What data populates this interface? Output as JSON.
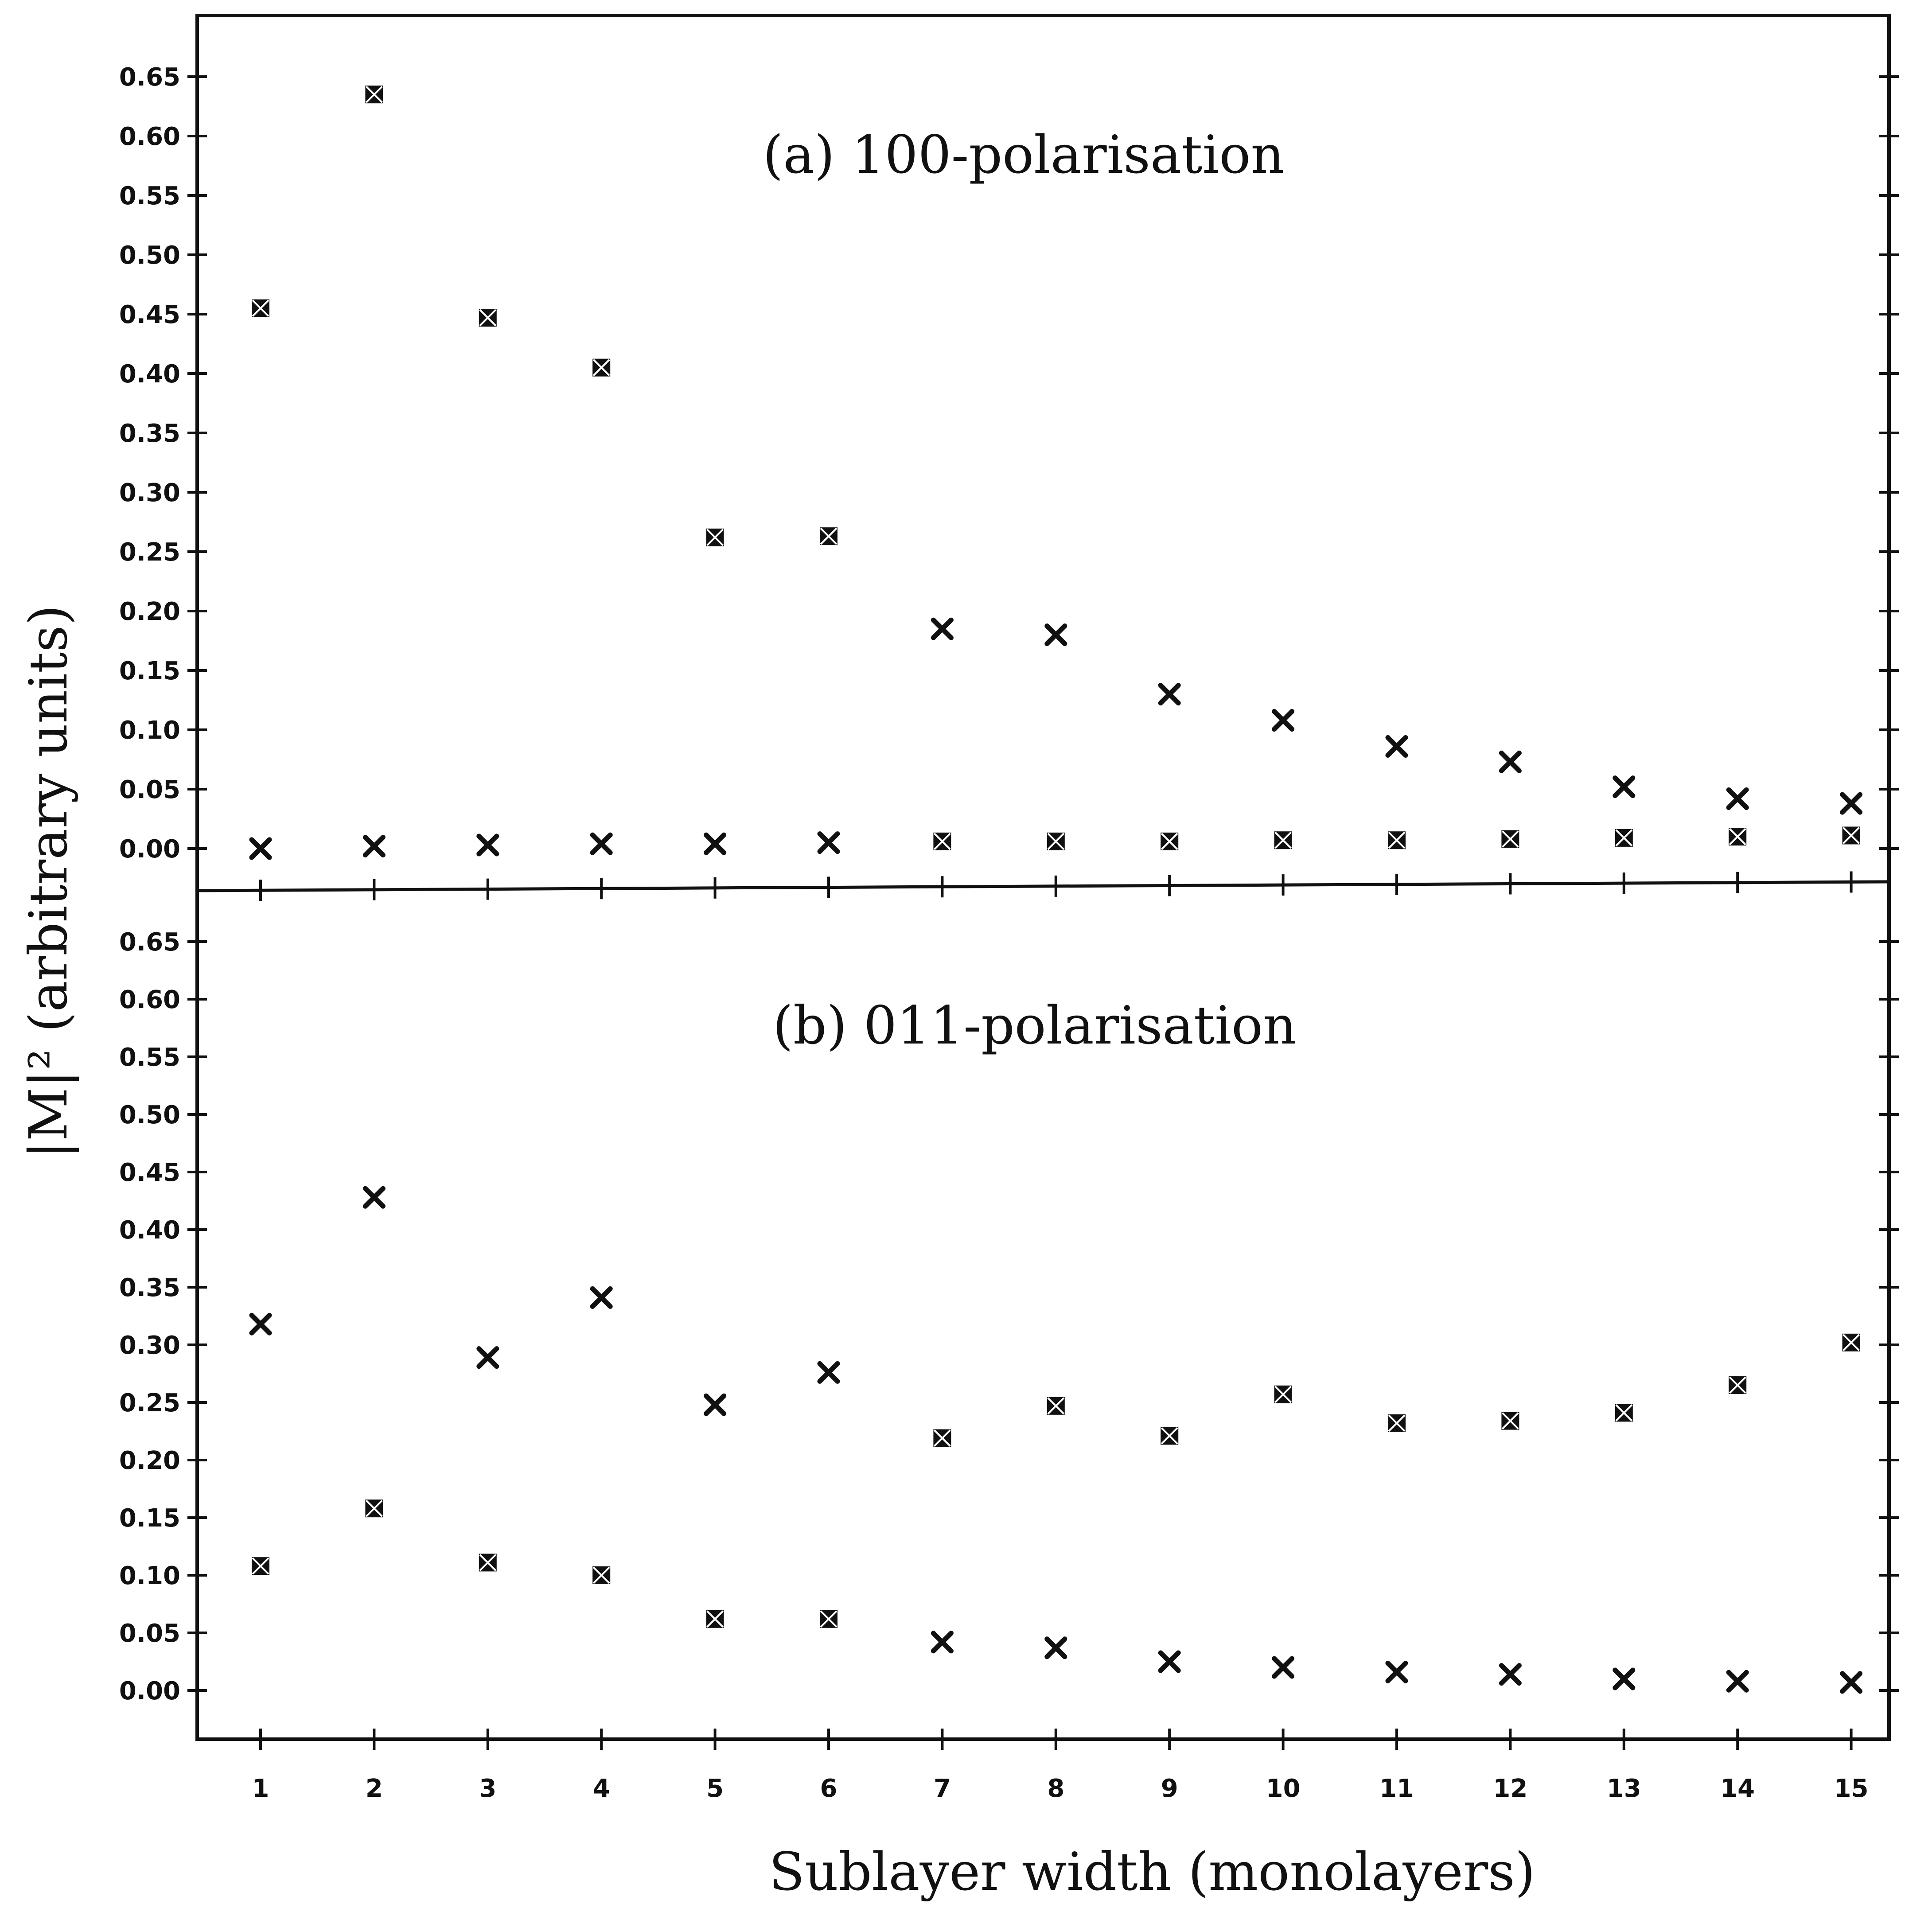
{
  "chart_data": [
    {
      "type": "scatter",
      "title": "(a) 100-polarisation",
      "x": [
        1,
        2,
        3,
        4,
        5,
        6,
        7,
        8,
        9,
        10,
        11,
        12,
        13,
        14,
        15
      ],
      "ylim": [
        -0.03,
        0.68
      ],
      "yticks": [
        "0.00",
        "0.05",
        "0.10",
        "0.15",
        "0.20",
        "0.25",
        "0.30",
        "0.35",
        "0.40",
        "0.45",
        "0.50",
        "0.55",
        "0.60",
        "0.65"
      ],
      "series": [
        {
          "marker": "asterisk",
          "points": [
            [
              1,
              0.455
            ],
            [
              2,
              0.635
            ],
            [
              3,
              0.447
            ],
            [
              4,
              0.405
            ],
            [
              5,
              0.262
            ],
            [
              6,
              0.263
            ],
            [
              7,
              0.006
            ],
            [
              8,
              0.006
            ],
            [
              9,
              0.006
            ],
            [
              10,
              0.007
            ],
            [
              11,
              0.007
            ],
            [
              12,
              0.008
            ],
            [
              13,
              0.009
            ],
            [
              14,
              0.01
            ],
            [
              15,
              0.011
            ]
          ]
        },
        {
          "marker": "cross",
          "points": [
            [
              1,
              0.0
            ],
            [
              2,
              0.002
            ],
            [
              3,
              0.003
            ],
            [
              4,
              0.004
            ],
            [
              5,
              0.004
            ],
            [
              6,
              0.005
            ],
            [
              7,
              0.185
            ],
            [
              8,
              0.18
            ],
            [
              9,
              0.13
            ],
            [
              10,
              0.108
            ],
            [
              11,
              0.086
            ],
            [
              12,
              0.073
            ],
            [
              13,
              0.052
            ],
            [
              14,
              0.042
            ],
            [
              15,
              0.038
            ]
          ]
        }
      ]
    },
    {
      "type": "scatter",
      "title": "(b) 011-polarisation",
      "x": [
        1,
        2,
        3,
        4,
        5,
        6,
        7,
        8,
        9,
        10,
        11,
        12,
        13,
        14,
        15
      ],
      "xlabel": "Sublayer width (monolayers)",
      "ylim": [
        -0.04,
        0.68
      ],
      "yticks": [
        "0.00",
        "0.05",
        "0.10",
        "0.15",
        "0.20",
        "0.25",
        "0.30",
        "0.35",
        "0.40",
        "0.45",
        "0.50",
        "0.55",
        "0.60",
        "0.65"
      ],
      "series": [
        {
          "marker": "cross",
          "points": [
            [
              1,
              0.318
            ],
            [
              2,
              0.428
            ],
            [
              3,
              0.289
            ],
            [
              4,
              0.341
            ],
            [
              5,
              0.248
            ],
            [
              6,
              0.276
            ],
            [
              7,
              0.042
            ],
            [
              8,
              0.037
            ],
            [
              9,
              0.025
            ],
            [
              10,
              0.02
            ],
            [
              11,
              0.016
            ],
            [
              12,
              0.014
            ],
            [
              13,
              0.01
            ],
            [
              14,
              0.008
            ],
            [
              15,
              0.007
            ]
          ]
        },
        {
          "marker": "asterisk",
          "points": [
            [
              1,
              0.108
            ],
            [
              2,
              0.158
            ],
            [
              3,
              0.111
            ],
            [
              4,
              0.1
            ],
            [
              5,
              0.062
            ],
            [
              6,
              0.062
            ],
            [
              7,
              0.219
            ],
            [
              8,
              0.247
            ],
            [
              9,
              0.221
            ],
            [
              10,
              0.257
            ],
            [
              11,
              0.232
            ],
            [
              12,
              0.234
            ],
            [
              13,
              0.241
            ],
            [
              14,
              0.265
            ],
            [
              15,
              0.302
            ]
          ]
        }
      ]
    }
  ],
  "ylabel_shared": "|M|² (arbitrary units)",
  "xticks": [
    "1",
    "2",
    "3",
    "4",
    "5",
    "6",
    "7",
    "8",
    "9",
    "10",
    "11",
    "12",
    "13",
    "14",
    "15"
  ]
}
